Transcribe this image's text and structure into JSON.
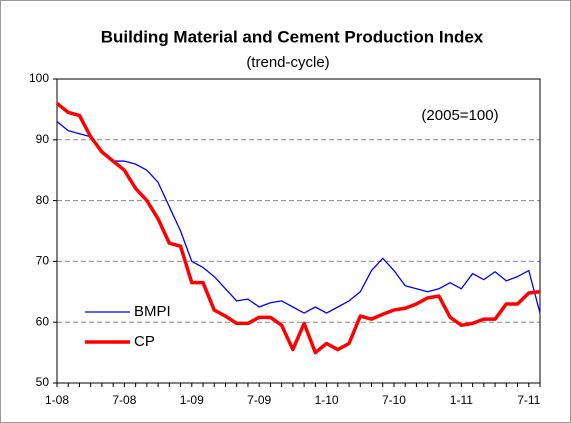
{
  "chart_data": {
    "type": "line",
    "title": "Building Material  and Cement Production Index",
    "subtitle": "(trend-cycle)",
    "annotation": "(2005=100)",
    "categories": [
      "1-08",
      null,
      null,
      null,
      null,
      null,
      "7-08",
      null,
      null,
      null,
      null,
      null,
      "1-09",
      null,
      null,
      null,
      null,
      null,
      "7-09",
      null,
      null,
      null,
      null,
      null,
      "1-10",
      null,
      null,
      null,
      null,
      null,
      "7-10",
      null,
      null,
      null,
      null,
      null,
      "1-11",
      null,
      null,
      null,
      null,
      null,
      "7-11",
      null
    ],
    "series": [
      {
        "name": "BMPI",
        "color": "#0000ff",
        "width": 1.3,
        "values": [
          93,
          91.5,
          91,
          90.5,
          88,
          86.5,
          86.5,
          86,
          85,
          83,
          79,
          75,
          70,
          69,
          67.5,
          65.5,
          63.5,
          63.8,
          62.5,
          63.2,
          63.5,
          62.5,
          61.5,
          62.5,
          61.5,
          62.5,
          63.5,
          65,
          68.5,
          70.5,
          68.5,
          66,
          65.5,
          65,
          65.5,
          66.5,
          65.5,
          68,
          67,
          68.3,
          66.8,
          67.5,
          68.5,
          61.5
        ]
      },
      {
        "name": "CP",
        "color": "#ff0000",
        "width": 3.5,
        "values": [
          96,
          94.5,
          94,
          90.5,
          88,
          86.5,
          85,
          82,
          80,
          77,
          73,
          72.5,
          66.5,
          66.5,
          62,
          61,
          59.8,
          59.8,
          60.8,
          60.8,
          59.5,
          55.5,
          59.8,
          55,
          56.5,
          55.5,
          56.5,
          61,
          60.5,
          61.3,
          62,
          62.3,
          63,
          64,
          64.3,
          60.8,
          59.5,
          59.8,
          60.5,
          60.5,
          63,
          63,
          64.8,
          65
        ]
      }
    ],
    "ylim": [
      50,
      100
    ],
    "yticks": [
      50,
      60,
      70,
      80,
      90,
      100
    ],
    "grid": true
  }
}
